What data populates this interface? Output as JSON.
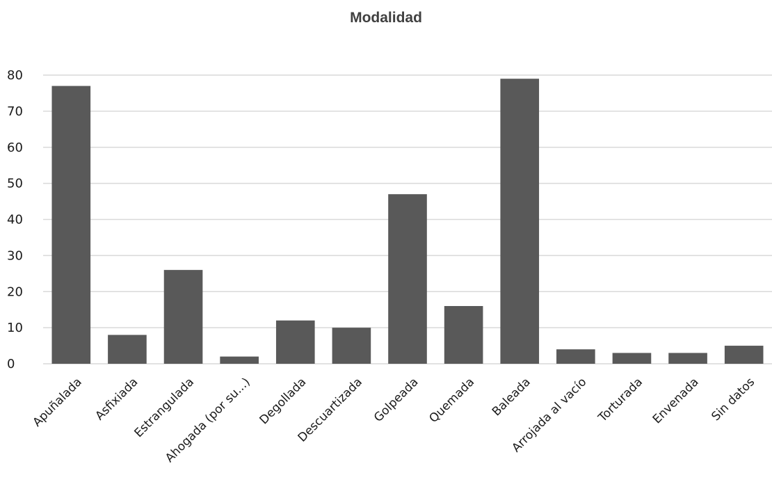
{
  "chart_data": {
    "type": "bar",
    "title": "Modalidad",
    "categories": [
      "Apuñalada",
      "Asfixiada",
      "Estrangulada",
      "Ahogada (por su...)",
      "Degollada",
      "Descuartizada",
      "Golpeada",
      "Quemada",
      "Baleada",
      "Arrojada al vacío",
      "Torturada",
      "Envenada",
      "Sin datos"
    ],
    "values": [
      77,
      8,
      26,
      2,
      12,
      10,
      47,
      16,
      79,
      4,
      3,
      3,
      5
    ],
    "ylim": [
      0,
      80
    ],
    "yticks": [
      0,
      10,
      20,
      30,
      40,
      50,
      60,
      70,
      80
    ],
    "grid": true,
    "colors": {
      "bar": "#595959",
      "grid": "#d9d9d9"
    }
  }
}
